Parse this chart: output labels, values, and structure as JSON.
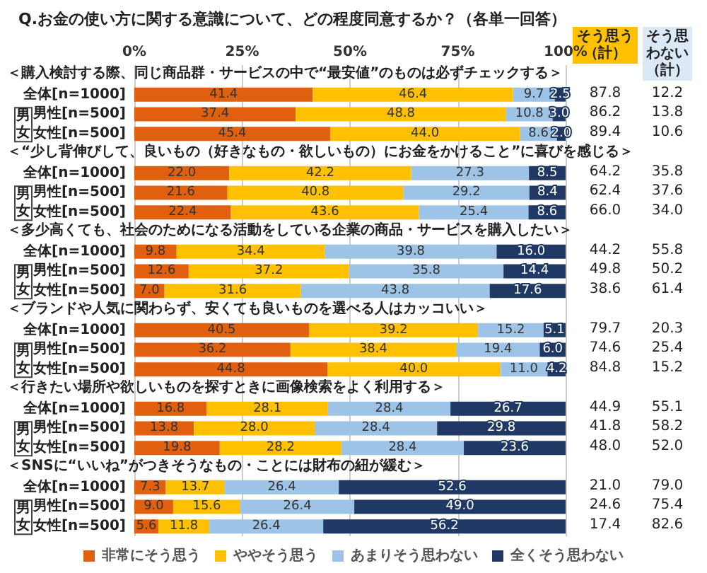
{
  "chart_data": {
    "type": "bar",
    "orientation": "horizontal",
    "stacked": true,
    "title": "Q.お金の使い方に関する意識について、どの程度同意するか？（各単一回答）",
    "categories": [
      null,
      "全体[n=1000]",
      "男性[n=500]",
      "女性[n=500]",
      null,
      "全体[n=1000]",
      "男性[n=500]",
      "女性[n=500]",
      null,
      "全体[n=1000]",
      "男性[n=500]",
      "女性[n=500]",
      null,
      "全体[n=1000]",
      "男性[n=500]",
      "女性[n=500]",
      null,
      "全体[n=1000]",
      "男性[n=500]",
      "女性[n=500]",
      null,
      "全体[n=1000]",
      "男性[n=500]",
      "女性[n=500]"
    ],
    "series": [
      {
        "name": "非常にそう思う",
        "color": "#e0600f",
        "values": [
          null,
          41.4,
          37.4,
          45.4,
          null,
          22.0,
          21.6,
          22.4,
          null,
          9.8,
          12.6,
          7.0,
          null,
          40.5,
          36.2,
          44.8,
          null,
          16.8,
          13.8,
          19.8,
          null,
          7.3,
          9.0,
          5.6
        ],
        "value_labels": [
          null,
          "41.4",
          "37.4",
          "45.4",
          null,
          "22.0",
          "21.6",
          "22.4",
          null,
          "9.8",
          "12.6",
          "7.0",
          null,
          "40.5",
          "36.2",
          "44.8",
          null,
          "16.8",
          "13.8",
          "19.8",
          null,
          "7.3",
          "9.0",
          "5.6"
        ]
      },
      {
        "name": "ややそう思う",
        "color": "#ffc000",
        "values": [
          null,
          46.4,
          48.8,
          44.0,
          null,
          42.2,
          40.8,
          43.6,
          null,
          34.4,
          37.2,
          31.6,
          null,
          39.2,
          38.4,
          40.0,
          null,
          28.1,
          28.0,
          28.2,
          null,
          13.7,
          15.6,
          11.8
        ],
        "value_labels": [
          null,
          "46.4",
          "48.8",
          "44.0",
          null,
          "42.2",
          "40.8",
          "43.6",
          null,
          "34.4",
          "37.2",
          "31.6",
          null,
          "39.2",
          "38.4",
          "40.0",
          null,
          "28.1",
          "28.0",
          "28.2",
          null,
          "13.7",
          "15.6",
          "11.8"
        ]
      },
      {
        "name": "あまりそう思わない",
        "color": "#9dc3e6",
        "values": [
          null,
          9.7,
          10.8,
          8.6,
          null,
          27.3,
          29.2,
          25.4,
          null,
          39.8,
          35.8,
          43.8,
          null,
          15.2,
          19.4,
          11.0,
          null,
          28.4,
          28.4,
          28.4,
          null,
          26.4,
          26.4,
          26.4
        ],
        "value_labels": [
          null,
          "9.7",
          "10.8",
          "8.6",
          null,
          "27.3",
          "29.2",
          "25.4",
          null,
          "39.8",
          "35.8",
          "43.8",
          null,
          "15.2",
          "19.4",
          "11.0",
          null,
          "28.4",
          "28.4",
          "28.4",
          null,
          "26.4",
          "26.4",
          "26.4"
        ]
      },
      {
        "name": "全くそう思わない",
        "color": "#1f3864",
        "values": [
          null,
          2.5,
          3.0,
          2.0,
          null,
          8.5,
          8.4,
          8.6,
          null,
          16.0,
          14.4,
          17.6,
          null,
          5.1,
          6.0,
          4.2,
          null,
          26.7,
          29.8,
          23.6,
          null,
          52.6,
          49.0,
          56.2
        ],
        "value_labels": [
          null,
          "2.5",
          "3.0",
          "2.0",
          null,
          "8.5",
          "8.4",
          "8.6",
          null,
          "16.0",
          "14.4",
          "17.6",
          null,
          "5.1",
          "6.0",
          "4.2",
          null,
          "26.7",
          "29.8",
          "23.6",
          null,
          "52.6",
          "49.0",
          "56.2"
        ]
      }
    ],
    "xlim": [
      0,
      100
    ],
    "xticks": [
      {
        "value": 0,
        "label": "0%"
      },
      {
        "value": 25,
        "label": "25%"
      },
      {
        "value": 50,
        "label": "50%"
      },
      {
        "value": 75,
        "label": "75%"
      },
      {
        "value": 100,
        "label": "100%"
      }
    ],
    "grid": "x",
    "legend": "bottom",
    "annotations": [
      "＜購入検討する際、同じ商品群・サービスの中で“最安値”のものは必ずチェックする＞",
      "＜“少し背伸びして、良いもの（好きなもの・欲しいもの）にお金をかけること”に喜びを感じる＞",
      "＜多少高くても、社会のためになる活動をしている企業の商品・サービスを購入したい＞",
      "＜ブランドや人気に関わらず、安くても良いものを選べる人はカッコいい＞",
      "＜行きたい場所や欲しいものを探すときに画像検索をよく利用する＞",
      "＜SNSに“いいね”がつきそうなもの・ことには財布の紐が緩む＞",
      "男女",
      "そう思う（計）",
      "そう思わない（計）",
      "87.8",
      "12.2",
      "86.2",
      "13.8",
      "89.4",
      "10.6",
      "64.2",
      "35.8",
      "62.4",
      "37.6",
      "66.0",
      "34.0",
      "44.2",
      "55.8",
      "49.8",
      "50.2",
      "38.6",
      "61.4",
      "79.7",
      "20.3",
      "74.6",
      "25.4",
      "84.8",
      "15.2",
      "44.9",
      "55.1",
      "41.8",
      "58.2",
      "48.0",
      "52.0",
      "21.0",
      "79.0",
      "24.6",
      "75.4",
      "17.4",
      "82.6"
    ]
  }
}
